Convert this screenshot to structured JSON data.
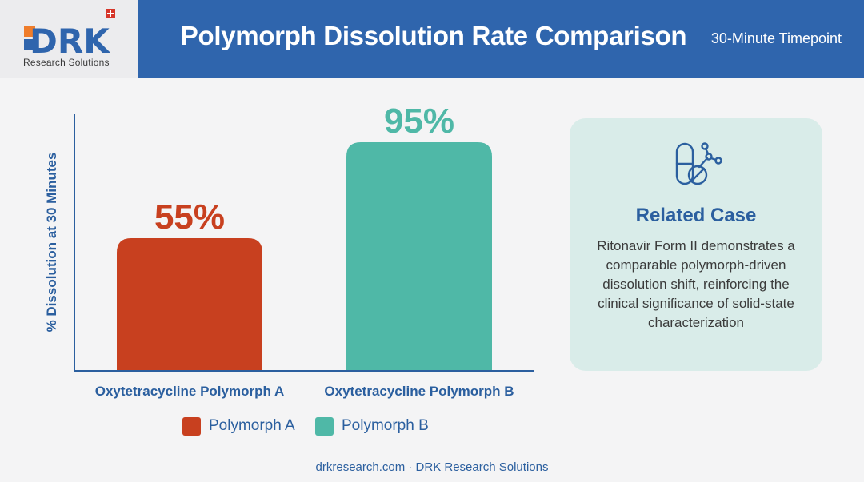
{
  "header": {
    "logo_text": "DRK",
    "logo_sub": "Research Solutions",
    "title": "Polymorph Dissolution Rate Comparison",
    "subtitle": "30-Minute Timepoint"
  },
  "chart_data": {
    "type": "bar",
    "ylabel": "% Dissolution at 30 Minutes",
    "xlabel": "",
    "ylim": [
      0,
      100
    ],
    "grid": false,
    "categories": [
      "Oxytetracycline Polymorph A",
      "Oxytetracycline Polymorph B"
    ],
    "values": [
      55,
      95
    ],
    "value_labels": [
      "55%",
      "95%"
    ],
    "colors": [
      "#c8401f",
      "#4fb8a7"
    ],
    "legend": [
      "Polymorph A",
      "Polymorph B"
    ],
    "legend_position": "bottom-center"
  },
  "card": {
    "icon": "pill-molecule-icon",
    "title": "Related Case",
    "body": "Ritonavir Form II demonstrates a comparable polymorph-driven dissolution shift, reinforcing the clinical significance of solid-state characterization"
  },
  "footer": "drkresearch.com · DRK Research Solutions",
  "colors": {
    "brand": "#2f65ad",
    "accent_text": "#2b5f9f",
    "card_bg": "#d9ece9"
  }
}
